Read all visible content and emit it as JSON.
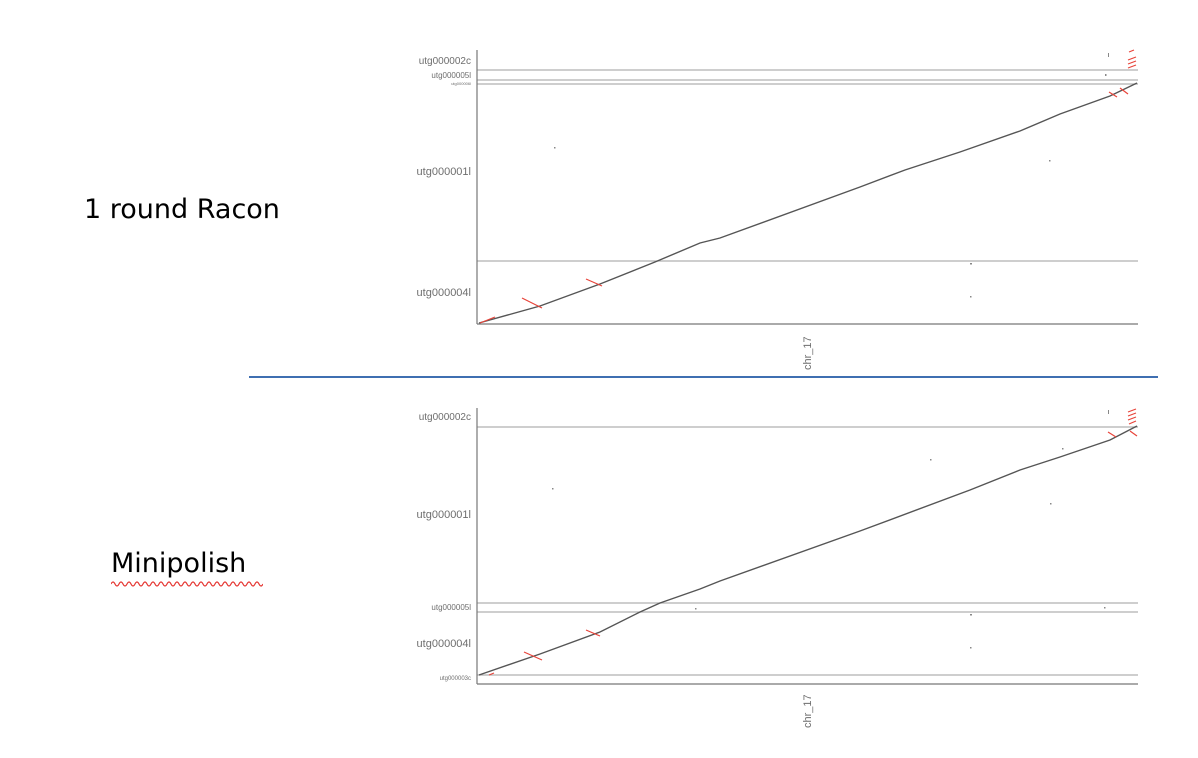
{
  "labels": {
    "top": "1 round Racon",
    "bottom": "Minipolish"
  },
  "colors": {
    "divider": "#3f6fb1",
    "alignment_forward": "#555555",
    "alignment_reverse": "#e8443a",
    "gridline": "#b0b0b0",
    "axis": "#777777",
    "squiggle": "#e53935"
  },
  "plots": [
    {
      "name": "racon-dotplot",
      "x_axis_label": "chr_17",
      "contigs": [
        "utg000002c",
        "utg000005l",
        "utg000006l",
        "utg000001l",
        "utg000004l"
      ],
      "contig_label_sizes": [
        "normal",
        "small",
        "tiny",
        "normal",
        "normal"
      ]
    },
    {
      "name": "minipolish-dotplot",
      "x_axis_label": "chr_17",
      "contigs": [
        "utg000002c",
        "utg000001l",
        "utg000005l",
        "utg000004l",
        "utg000003c"
      ],
      "contig_label_sizes": [
        "normal",
        "normal",
        "small",
        "normal",
        "tiny"
      ]
    }
  ]
}
